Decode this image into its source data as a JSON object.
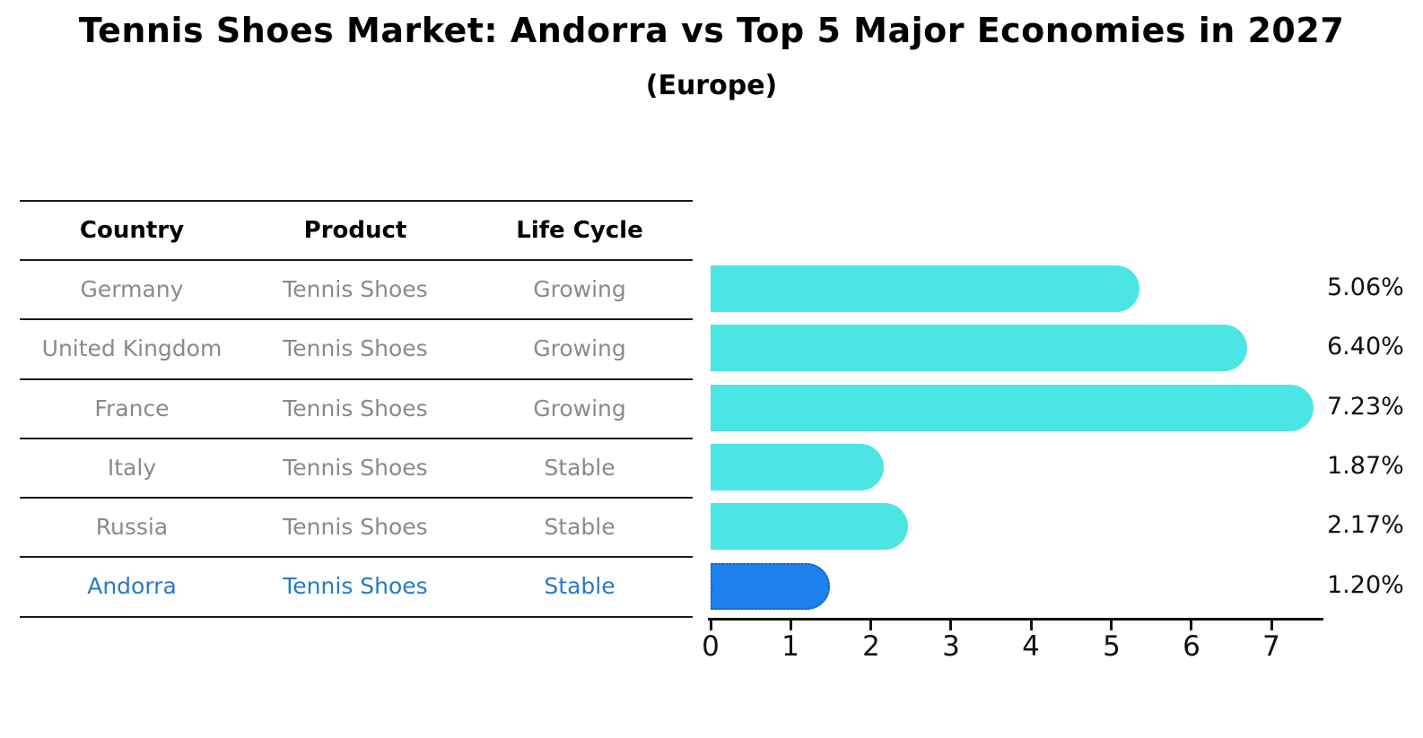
{
  "title": "Tennis Shoes Market: Andorra vs Top 5 Major Economies in 2027",
  "subtitle": "(Europe)",
  "table": {
    "headers": [
      "Country",
      "Product",
      "Life Cycle"
    ]
  },
  "chart_data": {
    "type": "bar",
    "orientation": "horizontal",
    "title": "Tennis Shoes Market: Andorra vs Top 5 Major Economies in 2027",
    "subtitle": "(Europe)",
    "categories": [
      "Germany",
      "United Kingdom",
      "France",
      "Italy",
      "Russia",
      "Andorra"
    ],
    "values": [
      5.06,
      6.4,
      7.23,
      1.87,
      2.17,
      1.2
    ],
    "value_labels": [
      "5.06%",
      "6.40%",
      "7.23%",
      "1.87%",
      "2.17%",
      "1.20%"
    ],
    "x_ticks": [
      "0",
      "1",
      "2",
      "3",
      "4",
      "5",
      "6",
      "7"
    ],
    "xlim": [
      0,
      7.65
    ],
    "grid": false,
    "legend": false,
    "highlight_category": "Andorra",
    "rows": [
      {
        "country": "Germany",
        "product": "Tennis Shoes",
        "life_cycle": "Growing",
        "value": 5.06,
        "label": "5.06%",
        "highlight": false
      },
      {
        "country": "United Kingdom",
        "product": "Tennis Shoes",
        "life_cycle": "Growing",
        "value": 6.4,
        "label": "6.40%",
        "highlight": false
      },
      {
        "country": "France",
        "product": "Tennis Shoes",
        "life_cycle": "Growing",
        "value": 7.23,
        "label": "7.23%",
        "highlight": false
      },
      {
        "country": "Italy",
        "product": "Tennis Shoes",
        "life_cycle": "Stable",
        "value": 1.87,
        "label": "1.87%",
        "highlight": false
      },
      {
        "country": "Russia",
        "product": "Tennis Shoes",
        "life_cycle": "Stable",
        "value": 2.17,
        "label": "2.17%",
        "highlight": false
      },
      {
        "country": "Andorra",
        "product": "Tennis Shoes",
        "life_cycle": "Stable",
        "value": 1.2,
        "label": "1.20%",
        "highlight": true
      }
    ],
    "colors": {
      "bar": "#4be6e3",
      "highlight_bar": "#1e80ec",
      "highlight_border": "#0e5fd1",
      "row_text": "#8a8a8a",
      "highlight_text": "#2879c9",
      "axis": "#111111",
      "title_text": "#000000"
    }
  }
}
